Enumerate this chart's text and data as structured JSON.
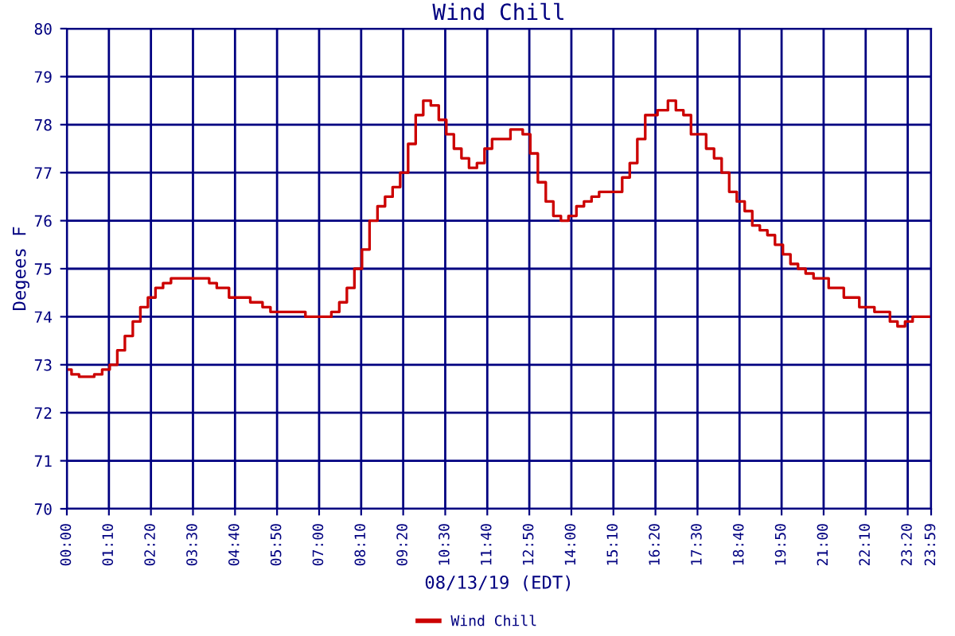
{
  "chart_data": {
    "type": "step",
    "title": "Wind Chill",
    "xlabel": "08/13/19 (EDT)",
    "ylabel": "Degees F",
    "x": [
      0,
      0.13,
      0.34,
      0.76,
      0.98,
      1.19,
      1.4,
      1.61,
      1.83,
      2.04,
      2.25,
      2.46,
      2.67,
      2.89,
      3.31,
      3.82,
      3.95,
      4.16,
      4.5,
      5.09,
      5.43,
      5.65,
      6.49,
      6.62,
      7.13,
      7.34,
      7.56,
      7.77,
      7.98,
      8.19,
      8.4,
      8.62,
      8.83,
      9.04,
      9.25,
      9.47,
      9.68,
      9.89,
      10.1,
      10.32,
      10.53,
      10.74,
      10.95,
      11.16,
      11.38,
      11.59,
      11.8,
      12.14,
      12.31,
      12.65,
      12.86,
      13.07,
      13.29,
      13.5,
      13.71,
      13.92,
      14.14,
      14.35,
      14.56,
      14.77,
      15.2,
      15.41,
      15.62,
      15.83,
      16.05,
      16.39,
      16.68,
      16.9,
      17.11,
      17.32,
      17.53,
      17.74,
      17.96,
      18.17,
      18.38,
      18.59,
      18.81,
      19.02,
      19.23,
      19.44,
      19.65,
      19.87,
      20.08,
      20.29,
      20.5,
      20.72,
      21.14,
      21.56,
      21.99,
      22.41,
      22.84,
      23.05,
      23.26,
      23.47,
      23.98
    ],
    "series": [
      {
        "name": "Wind Chill",
        "color": "#cc0000",
        "values": [
          72.9,
          72.8,
          72.75,
          72.8,
          72.9,
          73.0,
          73.3,
          73.6,
          73.9,
          74.2,
          74.4,
          74.6,
          74.7,
          74.8,
          74.8,
          74.8,
          74.7,
          74.6,
          74.4,
          74.3,
          74.2,
          74.1,
          74.1,
          74.0,
          74.0,
          74.1,
          74.3,
          74.6,
          75.0,
          75.4,
          76.0,
          76.3,
          76.5,
          76.7,
          77.0,
          77.6,
          78.2,
          78.5,
          78.4,
          78.1,
          77.8,
          77.5,
          77.3,
          77.1,
          77.2,
          77.5,
          77.7,
          77.7,
          77.9,
          77.8,
          77.4,
          76.8,
          76.4,
          76.1,
          76.0,
          76.1,
          76.3,
          76.4,
          76.5,
          76.6,
          76.6,
          76.9,
          77.2,
          77.7,
          78.2,
          78.3,
          78.5,
          78.3,
          78.2,
          77.8,
          77.8,
          77.5,
          77.3,
          77.0,
          76.6,
          76.4,
          76.2,
          75.9,
          75.8,
          75.7,
          75.5,
          75.3,
          75.1,
          75.0,
          74.9,
          74.8,
          74.6,
          74.4,
          74.2,
          74.1,
          73.9,
          73.8,
          73.9,
          74.0,
          74.0
        ]
      }
    ],
    "xlim": [
      0,
      23.983
    ],
    "ylim": [
      70,
      80
    ],
    "xticks": [
      {
        "value": 0,
        "label": "00:00"
      },
      {
        "value": 1.1667,
        "label": "01:10"
      },
      {
        "value": 2.3333,
        "label": "02:20"
      },
      {
        "value": 3.5,
        "label": "03:30"
      },
      {
        "value": 4.6667,
        "label": "04:40"
      },
      {
        "value": 5.8333,
        "label": "05:50"
      },
      {
        "value": 7,
        "label": "07:00"
      },
      {
        "value": 8.1667,
        "label": "08:10"
      },
      {
        "value": 9.3333,
        "label": "09:20"
      },
      {
        "value": 10.5,
        "label": "10:30"
      },
      {
        "value": 11.6667,
        "label": "11:40"
      },
      {
        "value": 12.8333,
        "label": "12:50"
      },
      {
        "value": 14,
        "label": "14:00"
      },
      {
        "value": 15.1667,
        "label": "15:10"
      },
      {
        "value": 16.3333,
        "label": "16:20"
      },
      {
        "value": 17.5,
        "label": "17:30"
      },
      {
        "value": 18.6667,
        "label": "18:40"
      },
      {
        "value": 19.8333,
        "label": "19:50"
      },
      {
        "value": 21,
        "label": "21:00"
      },
      {
        "value": 22.1667,
        "label": "22:10"
      },
      {
        "value": 23.3333,
        "label": "23:20"
      },
      {
        "value": 23.983,
        "label": "23:59"
      }
    ],
    "yticks": [
      70,
      71,
      72,
      73,
      74,
      75,
      76,
      77,
      78,
      79,
      80
    ],
    "grid": true,
    "legend": "bottom",
    "marker": "none",
    "line_style": "solid"
  }
}
